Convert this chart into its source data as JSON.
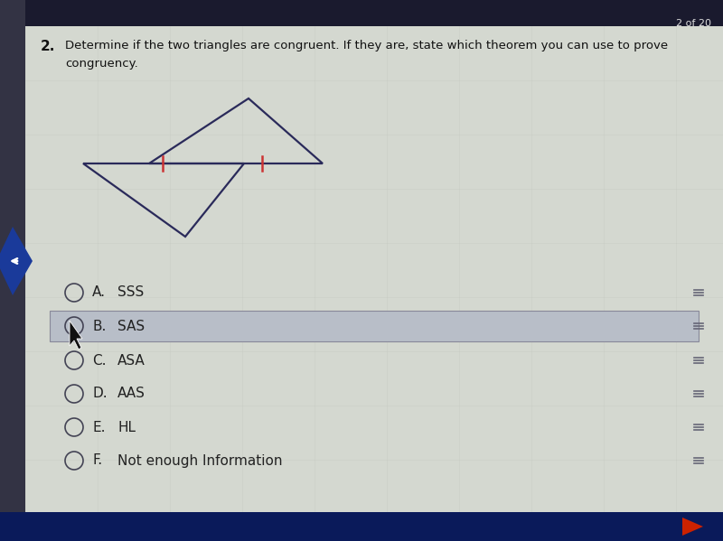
{
  "bg_color": "#b8bcc4",
  "card_color": "#d4d8d0",
  "question_number": "2.",
  "question_text_line1": "Determine if the two triangles are congruent. If they are, state which theorem you can use to prove",
  "question_text_line2": "congruency.",
  "page_indicator": "2 of 20",
  "tri_line_color": "#2a2a5a",
  "tick_color": "#cc3333",
  "options": [
    {
      "label": "A.",
      "text": "SSS",
      "selected": false
    },
    {
      "label": "B.",
      "text": "SAS",
      "selected": true
    },
    {
      "label": "C.",
      "text": "ASA",
      "selected": false
    },
    {
      "label": "D.",
      "text": "AAS",
      "selected": false
    },
    {
      "label": "E.",
      "text": "HL",
      "selected": false
    },
    {
      "label": "F.",
      "text": "Not enough Information",
      "selected": false
    }
  ],
  "option_sel_color": "#b8bec8",
  "option_sel_edge": "#888899",
  "text_color": "#111111",
  "option_text_color": "#222222",
  "circle_color": "#444455",
  "nav_color": "#1a3a9a",
  "nav_arrow_color": "#ffffff",
  "bottom_bar_color": "#0a1a5a",
  "play_color": "#cc2200",
  "left_bar_color": "#333344",
  "page_ind_color": "#dddddd",
  "top_bar_color": "#1a1a2e"
}
